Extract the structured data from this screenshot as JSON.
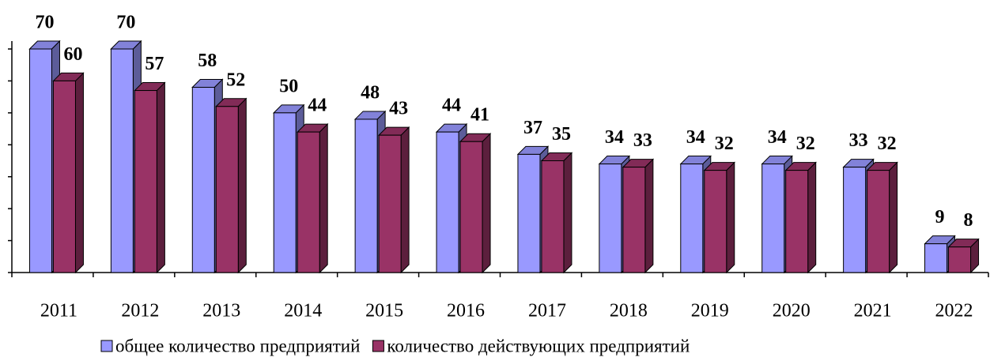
{
  "chart_data": {
    "type": "bar3d",
    "categories": [
      "2011",
      "2012",
      "2013",
      "2014",
      "2015",
      "2016",
      "2017",
      "2018",
      "2019",
      "2020",
      "2021",
      "2022"
    ],
    "series": [
      {
        "name": "общее количество предприятий",
        "color": "#9999ff",
        "values": [
          70,
          70,
          58,
          50,
          48,
          44,
          37,
          34,
          34,
          34,
          33,
          9
        ]
      },
      {
        "name": "количество действующих предприятий",
        "color": "#993366",
        "values": [
          60,
          57,
          52,
          44,
          43,
          41,
          35,
          33,
          32,
          32,
          32,
          8
        ]
      }
    ],
    "ylim": [
      0,
      70
    ],
    "yticks": [
      0,
      10,
      20,
      30,
      40,
      50,
      60,
      70
    ]
  }
}
